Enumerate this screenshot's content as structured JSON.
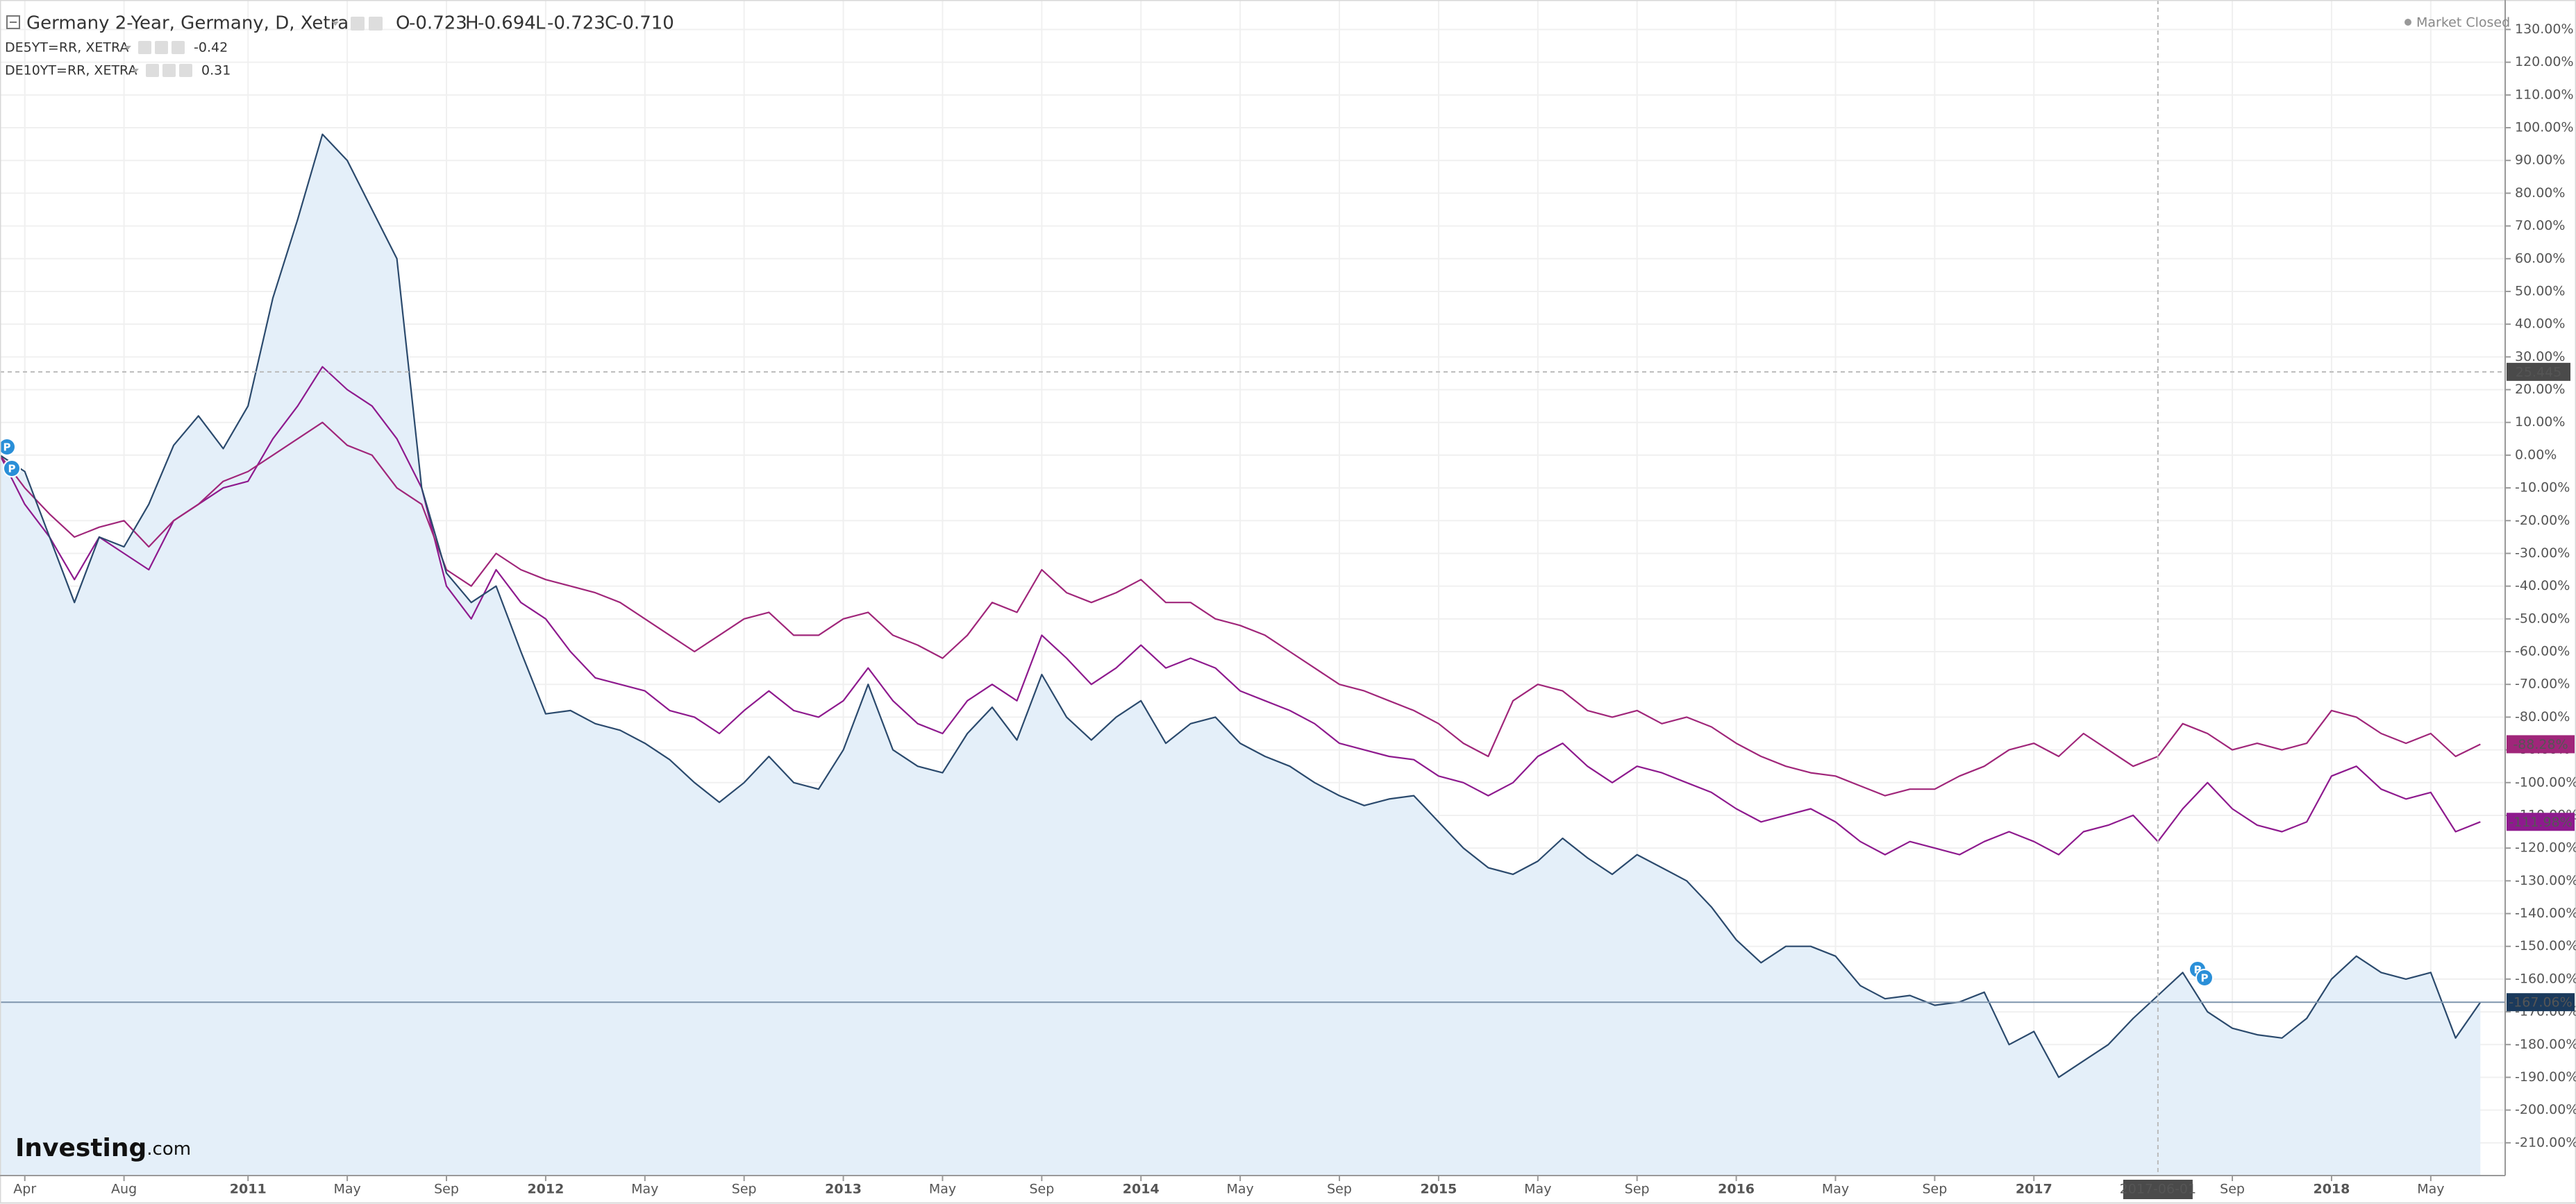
{
  "chart_data": {
    "type": "line",
    "title": "Germany 2-Year, Germany, D, Xetra",
    "ohlc": [
      [
        "O",
        "-0.723"
      ],
      [
        "H",
        "-0.694"
      ],
      [
        "L",
        "-0.723"
      ],
      [
        "C",
        "-0.710"
      ]
    ],
    "status": "Market Closed",
    "logo": [
      "Investing",
      ".com"
    ],
    "event_marker_text": "P",
    "x": [
      "2010-03",
      "2010-04",
      "2010-05",
      "2010-06",
      "2010-07",
      "2010-08",
      "2010-09",
      "2010-10",
      "2010-11",
      "2010-12",
      "2011-01",
      "2011-02",
      "2011-03",
      "2011-04",
      "2011-05",
      "2011-06",
      "2011-07",
      "2011-08",
      "2011-09",
      "2011-10",
      "2011-11",
      "2011-12",
      "2012-01",
      "2012-02",
      "2012-03",
      "2012-04",
      "2012-05",
      "2012-06",
      "2012-07",
      "2012-08",
      "2012-09",
      "2012-10",
      "2012-11",
      "2012-12",
      "2013-01",
      "2013-02",
      "2013-03",
      "2013-04",
      "2013-05",
      "2013-06",
      "2013-07",
      "2013-08",
      "2013-09",
      "2013-10",
      "2013-11",
      "2013-12",
      "2014-01",
      "2014-02",
      "2014-03",
      "2014-04",
      "2014-05",
      "2014-06",
      "2014-07",
      "2014-08",
      "2014-09",
      "2014-10",
      "2014-11",
      "2014-12",
      "2015-01",
      "2015-02",
      "2015-03",
      "2015-04",
      "2015-05",
      "2015-06",
      "2015-07",
      "2015-08",
      "2015-09",
      "2015-10",
      "2015-11",
      "2015-12",
      "2016-01",
      "2016-02",
      "2016-03",
      "2016-04",
      "2016-05",
      "2016-06",
      "2016-07",
      "2016-08",
      "2016-09",
      "2016-10",
      "2016-11",
      "2016-12",
      "2017-01",
      "2017-02",
      "2017-03",
      "2017-04",
      "2017-05",
      "2017-06",
      "2017-07",
      "2017-08",
      "2017-09",
      "2017-10",
      "2017-11",
      "2017-12",
      "2018-01",
      "2018-02",
      "2018-03",
      "2018-04",
      "2018-05",
      "2018-06",
      "2018-07"
    ],
    "series": [
      {
        "name": "Germany 2-Year, Germany, D, Xetra",
        "color": "#2b4a6d",
        "fill": "#e4eff9",
        "price_label": {
          "value": -167.06,
          "label": "-167.06%"
        },
        "values": [
          0,
          -5,
          -25,
          -45,
          -25,
          -28,
          -15,
          3,
          12,
          2,
          15,
          48,
          72,
          98,
          90,
          75,
          60,
          -10,
          -36,
          -45,
          -40,
          -60,
          -79,
          -78,
          -82,
          -84,
          -88,
          -93,
          -100,
          -106,
          -100,
          -92,
          -100,
          -102,
          -90,
          -70,
          -90,
          -95,
          -97,
          -85,
          -77,
          -87,
          -67,
          -80,
          -87,
          -80,
          -75,
          -88,
          -82,
          -80,
          -88,
          -92,
          -95,
          -100,
          -104,
          -107,
          -105,
          -104,
          -112,
          -120,
          -126,
          -128,
          -124,
          -117,
          -123,
          -128,
          -122,
          -126,
          -130,
          -138,
          -148,
          -155,
          -150,
          -150,
          -153,
          -162,
          -166,
          -165,
          -168,
          -167,
          -164,
          -180,
          -176,
          -190,
          -185,
          -180,
          -172,
          -165,
          -158,
          -170,
          -175,
          -177,
          -178,
          -172,
          -160,
          -153,
          -158,
          -160,
          -158,
          -178,
          -167.06
        ]
      },
      {
        "name": "DE5YT=RR, XETRA",
        "legend_value": "-0.42",
        "color": "#8e1a8e",
        "price_label": {
          "value": -111.98,
          "label": "-111.98%"
        },
        "values": [
          0,
          -15,
          -25,
          -38,
          -25,
          -30,
          -35,
          -20,
          -15,
          -10,
          -8,
          5,
          15,
          27,
          20,
          15,
          5,
          -10,
          -40,
          -50,
          -35,
          -45,
          -50,
          -60,
          -68,
          -70,
          -72,
          -78,
          -80,
          -85,
          -78,
          -72,
          -78,
          -80,
          -75,
          -65,
          -75,
          -82,
          -85,
          -75,
          -70,
          -75,
          -55,
          -62,
          -70,
          -65,
          -58,
          -65,
          -62,
          -65,
          -72,
          -75,
          -78,
          -82,
          -88,
          -90,
          -92,
          -93,
          -98,
          -100,
          -104,
          -100,
          -92,
          -88,
          -95,
          -100,
          -95,
          -97,
          -100,
          -103,
          -108,
          -112,
          -110,
          -108,
          -112,
          -118,
          -122,
          -118,
          -120,
          -122,
          -118,
          -115,
          -118,
          -122,
          -115,
          -113,
          -110,
          -118,
          -108,
          -100,
          -108,
          -113,
          -115,
          -112,
          -98,
          -95,
          -102,
          -105,
          -103,
          -115,
          -111.98
        ]
      },
      {
        "name": "DE10YT=RR, XETRA",
        "legend_value": "0.31",
        "color": "#a0267a",
        "price_label": {
          "value": -88.28,
          "label": "-88.28%"
        },
        "values": [
          0,
          -10,
          -18,
          -25,
          -22,
          -20,
          -28,
          -20,
          -15,
          -8,
          -5,
          0,
          5,
          10,
          3,
          0,
          -10,
          -15,
          -35,
          -40,
          -30,
          -35,
          -38,
          -40,
          -42,
          -45,
          -50,
          -55,
          -60,
          -55,
          -50,
          -48,
          -55,
          -55,
          -50,
          -48,
          -55,
          -58,
          -62,
          -55,
          -45,
          -48,
          -35,
          -42,
          -45,
          -42,
          -38,
          -45,
          -45,
          -50,
          -52,
          -55,
          -60,
          -65,
          -70,
          -72,
          -75,
          -78,
          -82,
          -88,
          -92,
          -75,
          -70,
          -72,
          -78,
          -80,
          -78,
          -82,
          -80,
          -83,
          -88,
          -92,
          -95,
          -97,
          -98,
          -101,
          -104,
          -102,
          -102,
          -98,
          -95,
          -90,
          -88,
          -92,
          -85,
          -90,
          -95,
          -92,
          -82,
          -85,
          -90,
          -88,
          -90,
          -88,
          -78,
          -80,
          -85,
          -88,
          -85,
          -92,
          -88.28
        ]
      }
    ],
    "xlim": [
      "2010-03",
      "2018-08"
    ],
    "xticks": [
      {
        "value": "2010-04",
        "label": "Apr"
      },
      {
        "value": "2010-08",
        "label": "Aug"
      },
      {
        "value": "2011-01",
        "label": "2011"
      },
      {
        "value": "2011-05",
        "label": "May"
      },
      {
        "value": "2011-09",
        "label": "Sep"
      },
      {
        "value": "2012-01",
        "label": "2012"
      },
      {
        "value": "2012-05",
        "label": "May"
      },
      {
        "value": "2012-09",
        "label": "Sep"
      },
      {
        "value": "2013-01",
        "label": "2013"
      },
      {
        "value": "2013-05",
        "label": "May"
      },
      {
        "value": "2013-09",
        "label": "Sep"
      },
      {
        "value": "2014-01",
        "label": "2014"
      },
      {
        "value": "2014-05",
        "label": "May"
      },
      {
        "value": "2014-09",
        "label": "Sep"
      },
      {
        "value": "2015-01",
        "label": "2015"
      },
      {
        "value": "2015-05",
        "label": "May"
      },
      {
        "value": "2015-09",
        "label": "Sep"
      },
      {
        "value": "2016-01",
        "label": "2016"
      },
      {
        "value": "2016-05",
        "label": "May"
      },
      {
        "value": "2016-09",
        "label": "Sep"
      },
      {
        "value": "2017-01",
        "label": "2017"
      },
      {
        "value": "2017-09",
        "label": "Sep"
      },
      {
        "value": "2018-01",
        "label": "2018"
      },
      {
        "value": "2018-05",
        "label": "May"
      }
    ],
    "ylim": [
      -220,
      139
    ],
    "yticks": [
      {
        "value": 130,
        "label": "130.00%"
      },
      {
        "value": 120,
        "label": "120.00%"
      },
      {
        "value": 110,
        "label": "110.00%"
      },
      {
        "value": 100,
        "label": "100.00%"
      },
      {
        "value": 90,
        "label": "90.00%"
      },
      {
        "value": 80,
        "label": "80.00%"
      },
      {
        "value": 70,
        "label": "70.00%"
      },
      {
        "value": 60,
        "label": "60.00%"
      },
      {
        "value": 50,
        "label": "50.00%"
      },
      {
        "value": 40,
        "label": "40.00%"
      },
      {
        "value": 30,
        "label": "30.00%"
      },
      {
        "value": 20,
        "label": "20.00%"
      },
      {
        "value": 10,
        "label": "10.00%"
      },
      {
        "value": 0,
        "label": "0.00%"
      },
      {
        "value": -10,
        "label": "-10.00%"
      },
      {
        "value": -20,
        "label": "-20.00%"
      },
      {
        "value": -30,
        "label": "-30.00%"
      },
      {
        "value": -40,
        "label": "-40.00%"
      },
      {
        "value": -50,
        "label": "-50.00%"
      },
      {
        "value": -60,
        "label": "-60.00%"
      },
      {
        "value": -70,
        "label": "-70.00%"
      },
      {
        "value": -80,
        "label": "-80.00%"
      },
      {
        "value": -90,
        "label": "-90.00%"
      },
      {
        "value": -100,
        "label": "-100.00%"
      },
      {
        "value": -110,
        "label": "-110.00%"
      },
      {
        "value": -120,
        "label": "-120.00%"
      },
      {
        "value": -130,
        "label": "-130.00%"
      },
      {
        "value": -140,
        "label": "-140.00%"
      },
      {
        "value": -150,
        "label": "-150.00%"
      },
      {
        "value": -160,
        "label": "-160.00%"
      },
      {
        "value": -170,
        "label": "-170.00%"
      },
      {
        "value": -180,
        "label": "-180.00%"
      },
      {
        "value": -190,
        "label": "-190.00%"
      },
      {
        "value": -200,
        "label": "-200.00%"
      },
      {
        "value": -210,
        "label": "-210.00%"
      }
    ],
    "grid": true,
    "crosshair": {
      "x": "2017-06-01",
      "y": 25.445
    }
  }
}
